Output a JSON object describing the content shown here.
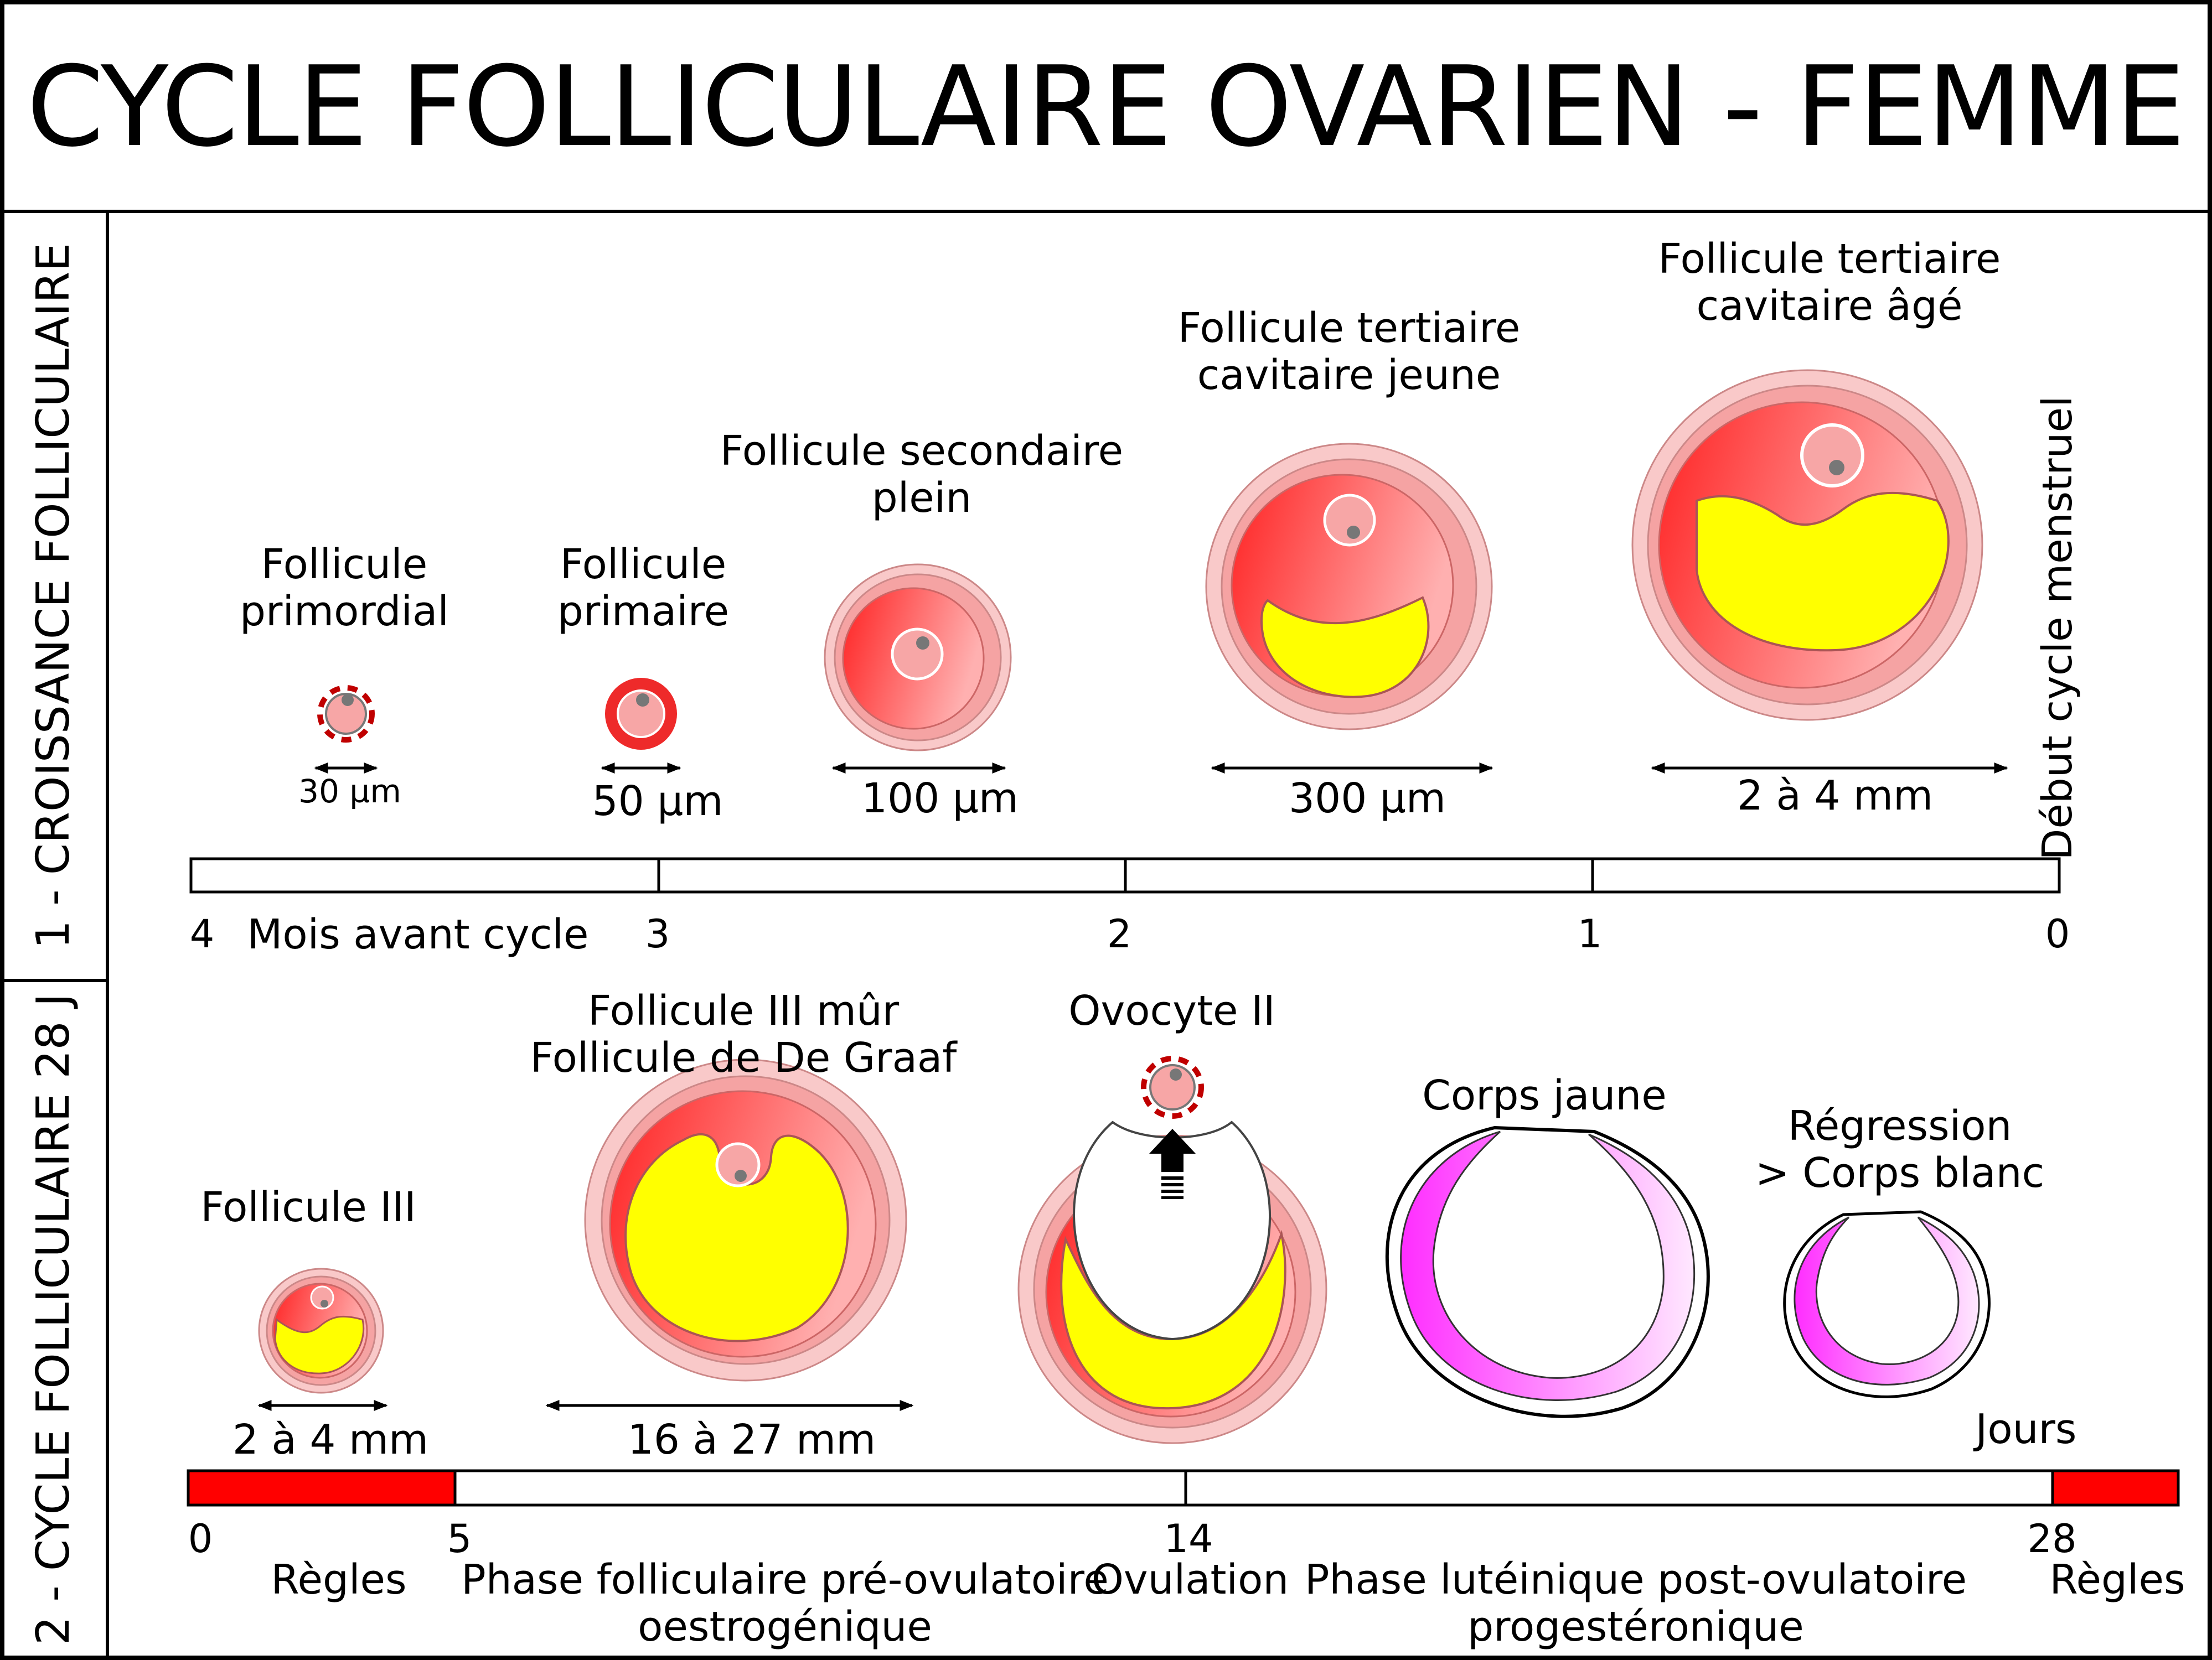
{
  "title": "CYCLE FOLLICULAIRE OVARIEN - FEMME",
  "section1": {
    "heading": "1 - CROISSANCE FOLLICULAIRE",
    "follicles": [
      {
        "name": [
          "Follicule",
          "primordial"
        ],
        "size": "30 µm"
      },
      {
        "name": [
          "Follicule",
          "primaire"
        ],
        "size": "50 µm"
      },
      {
        "name": [
          "Follicule secondaire",
          "plein"
        ],
        "size": "100 µm"
      },
      {
        "name": [
          "Follicule tertiaire",
          "cavitaire jeune"
        ],
        "size": "300 µm"
      },
      {
        "name": [
          "Follicule tertiaire",
          "cavitaire âgé"
        ],
        "size": "2 à 4 mm"
      }
    ],
    "cycle_start": "Début cycle menstruel",
    "timeline": {
      "unit_label": "Mois avant cycle",
      "ticks": [
        "4",
        "3",
        "2",
        "1",
        "0"
      ]
    }
  },
  "section2": {
    "heading": "2 - CYCLE FOLLICULAIRE 28 J",
    "stages": [
      {
        "name": [
          "Follicule III"
        ],
        "size": "2 à 4 mm"
      },
      {
        "name": [
          "Follicule III mûr",
          "Follicule de De Graaf"
        ],
        "size": "16 à 27 mm"
      },
      {
        "name": [
          "Ovocyte II"
        ],
        "size": ""
      },
      {
        "name": [
          "Corps jaune"
        ],
        "size": ""
      },
      {
        "name": [
          "Régression",
          "> Corps blanc"
        ],
        "size": ""
      }
    ],
    "timeline": {
      "unit_label": "Jours",
      "ticks": [
        "0",
        "5",
        "14",
        "28"
      ],
      "phases": [
        [
          "Règles"
        ],
        [
          "Phase folliculaire pré-ovulatoire",
          "oestrogénique"
        ],
        [
          "Ovulation"
        ],
        [
          "Phase lutéinique post-ovulatoire",
          "progestéronique"
        ],
        [
          "Règles"
        ]
      ]
    }
  },
  "colors": {
    "menses": "#ff0000",
    "granulosa": "#ff3333",
    "theca": "#f7b3b3",
    "antrum": "#ffff00",
    "corpus_luteum": "#ff33ff"
  }
}
